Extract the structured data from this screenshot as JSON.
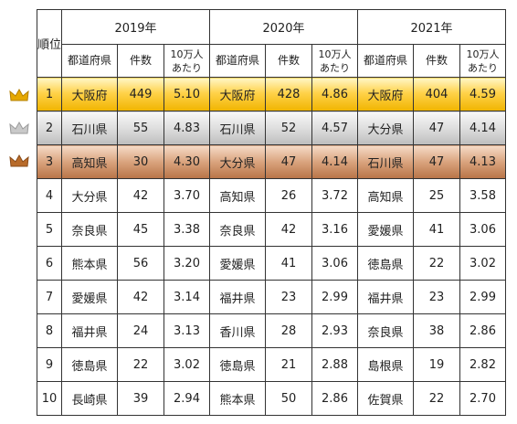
{
  "header": {
    "rank_label": "順位",
    "years": [
      "2019年",
      "2020年",
      "2021年"
    ],
    "col_pref": "都道府県",
    "col_count": "件数",
    "col_rate": "10万人あたり"
  },
  "colors": {
    "gold": "#f0b400",
    "silver": "#bdbdbd",
    "bronze": "#b87447"
  },
  "rows": [
    {
      "rank": "1",
      "cells": [
        [
          "大阪府",
          "449",
          "5.10"
        ],
        [
          "大阪府",
          "428",
          "4.86"
        ],
        [
          "大阪府",
          "404",
          "4.59"
        ]
      ]
    },
    {
      "rank": "2",
      "cells": [
        [
          "石川県",
          "55",
          "4.83"
        ],
        [
          "石川県",
          "52",
          "4.57"
        ],
        [
          "大分県",
          "47",
          "4.14"
        ]
      ]
    },
    {
      "rank": "3",
      "cells": [
        [
          "高知県",
          "30",
          "4.30"
        ],
        [
          "大分県",
          "47",
          "4.14"
        ],
        [
          "石川県",
          "47",
          "4.13"
        ]
      ]
    },
    {
      "rank": "4",
      "cells": [
        [
          "大分県",
          "42",
          "3.70"
        ],
        [
          "高知県",
          "26",
          "3.72"
        ],
        [
          "高知県",
          "25",
          "3.58"
        ]
      ]
    },
    {
      "rank": "5",
      "cells": [
        [
          "奈良県",
          "45",
          "3.38"
        ],
        [
          "奈良県",
          "42",
          "3.16"
        ],
        [
          "愛媛県",
          "41",
          "3.06"
        ]
      ]
    },
    {
      "rank": "6",
      "cells": [
        [
          "熊本県",
          "56",
          "3.20"
        ],
        [
          "愛媛県",
          "41",
          "3.06"
        ],
        [
          "徳島県",
          "22",
          "3.02"
        ]
      ]
    },
    {
      "rank": "7",
      "cells": [
        [
          "愛媛県",
          "42",
          "3.14"
        ],
        [
          "福井県",
          "23",
          "2.99"
        ],
        [
          "福井県",
          "23",
          "2.99"
        ]
      ]
    },
    {
      "rank": "8",
      "cells": [
        [
          "福井県",
          "24",
          "3.13"
        ],
        [
          "香川県",
          "28",
          "2.93"
        ],
        [
          "奈良県",
          "38",
          "2.86"
        ]
      ]
    },
    {
      "rank": "9",
      "cells": [
        [
          "徳島県",
          "22",
          "3.02"
        ],
        [
          "徳島県",
          "21",
          "2.88"
        ],
        [
          "島根県",
          "19",
          "2.82"
        ]
      ]
    },
    {
      "rank": "10",
      "cells": [
        [
          "長崎県",
          "39",
          "2.94"
        ],
        [
          "熊本県",
          "50",
          "2.86"
        ],
        [
          "佐賀県",
          "22",
          "2.70"
        ]
      ]
    }
  ]
}
